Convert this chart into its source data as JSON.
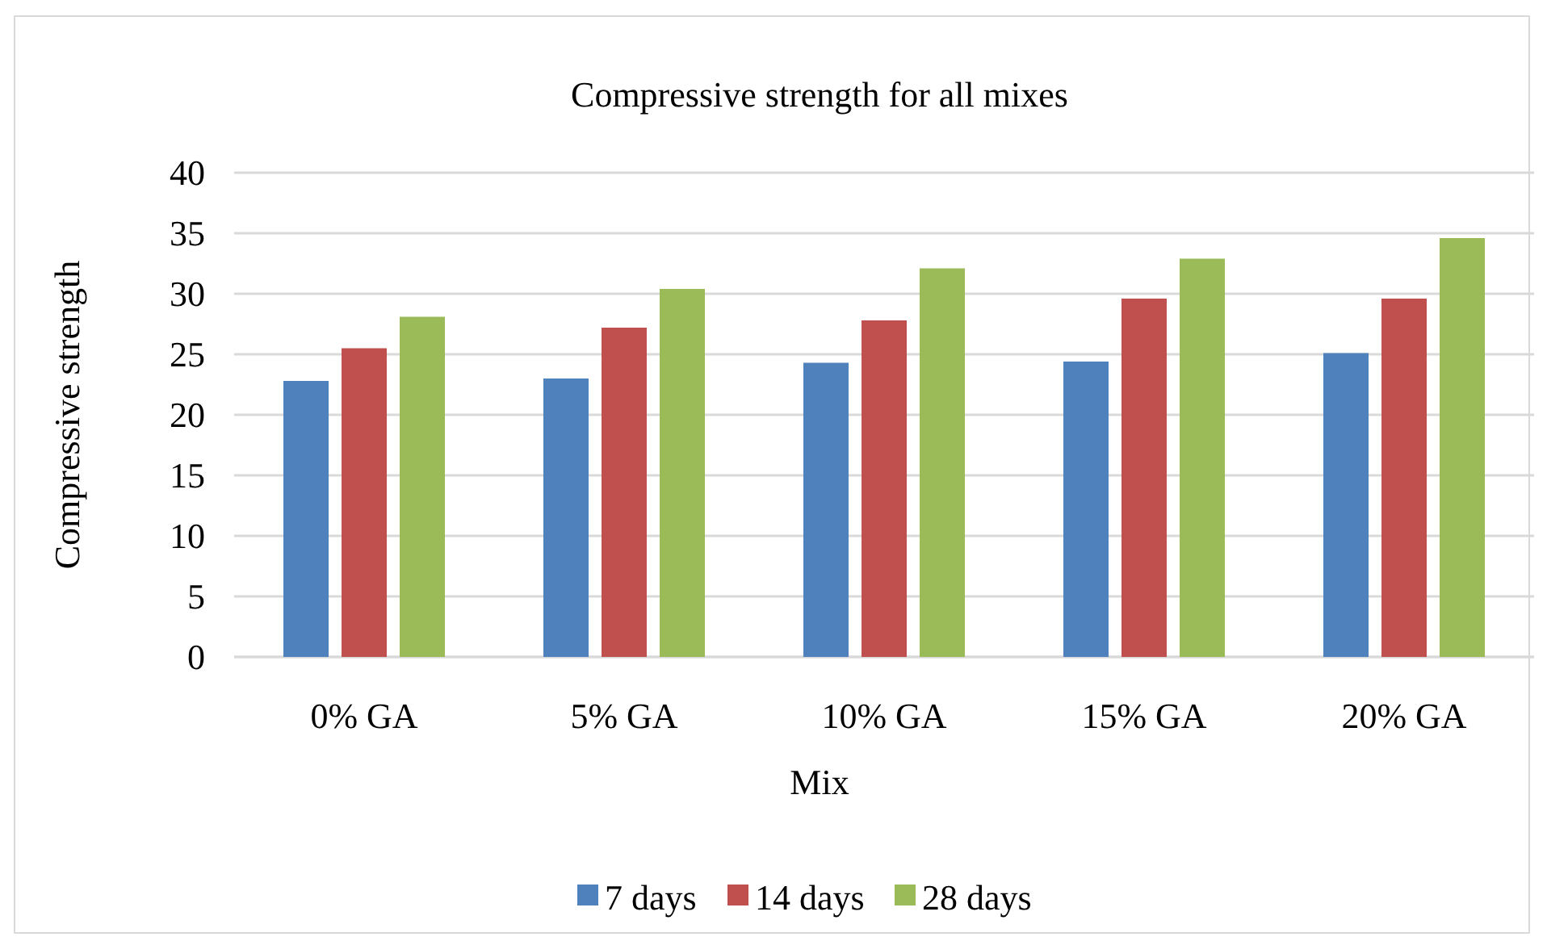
{
  "chart_data": {
    "type": "bar",
    "title": "Compressive strength for all mixes",
    "xlabel": "Mix",
    "ylabel": "Compressive strength",
    "categories": [
      "0% GA",
      "5% GA",
      "10% GA",
      "15% GA",
      "20% GA"
    ],
    "series": [
      {
        "name": "7 days",
        "color": "#4f81bd",
        "values": [
          22.8,
          23.0,
          24.3,
          24.4,
          25.1
        ]
      },
      {
        "name": "14 days",
        "color": "#c0504d",
        "values": [
          25.5,
          27.2,
          27.8,
          29.6,
          29.6
        ]
      },
      {
        "name": "28 days",
        "color": "#9bbb59",
        "values": [
          28.1,
          30.4,
          32.1,
          32.9,
          34.6
        ]
      }
    ],
    "ylim": [
      0,
      40
    ],
    "yticks": [
      0,
      5,
      10,
      15,
      20,
      25,
      30,
      35,
      40
    ],
    "grid": "y",
    "legend": "bottom"
  }
}
